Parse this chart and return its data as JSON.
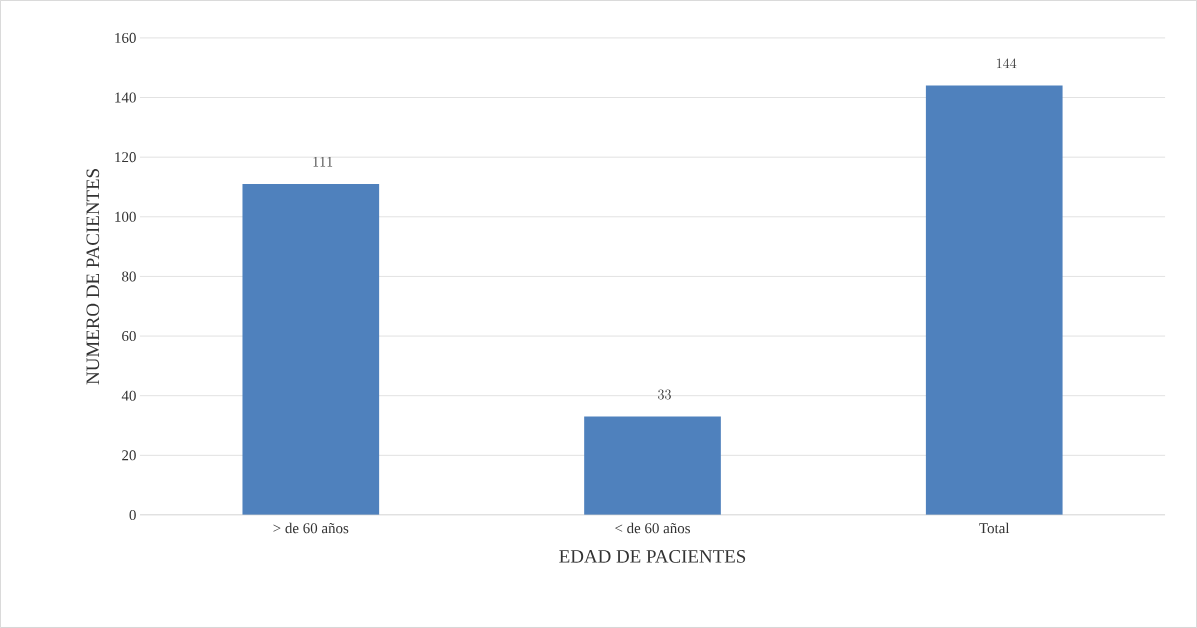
{
  "chart_data": {
    "type": "bar",
    "xlabel": "EDAD DE PACIENTES",
    "ylabel": "NUMERO DE PACIENTES",
    "categories": [
      "> de 60 años",
      "< de 60 años",
      "Total"
    ],
    "values": [
      111,
      33,
      144
    ],
    "color": "#4f81bd",
    "ylim": [
      0,
      160
    ],
    "yticks": [
      0,
      20,
      40,
      60,
      80,
      100,
      120,
      140,
      160
    ],
    "grid": "y",
    "data_labels": true
  }
}
